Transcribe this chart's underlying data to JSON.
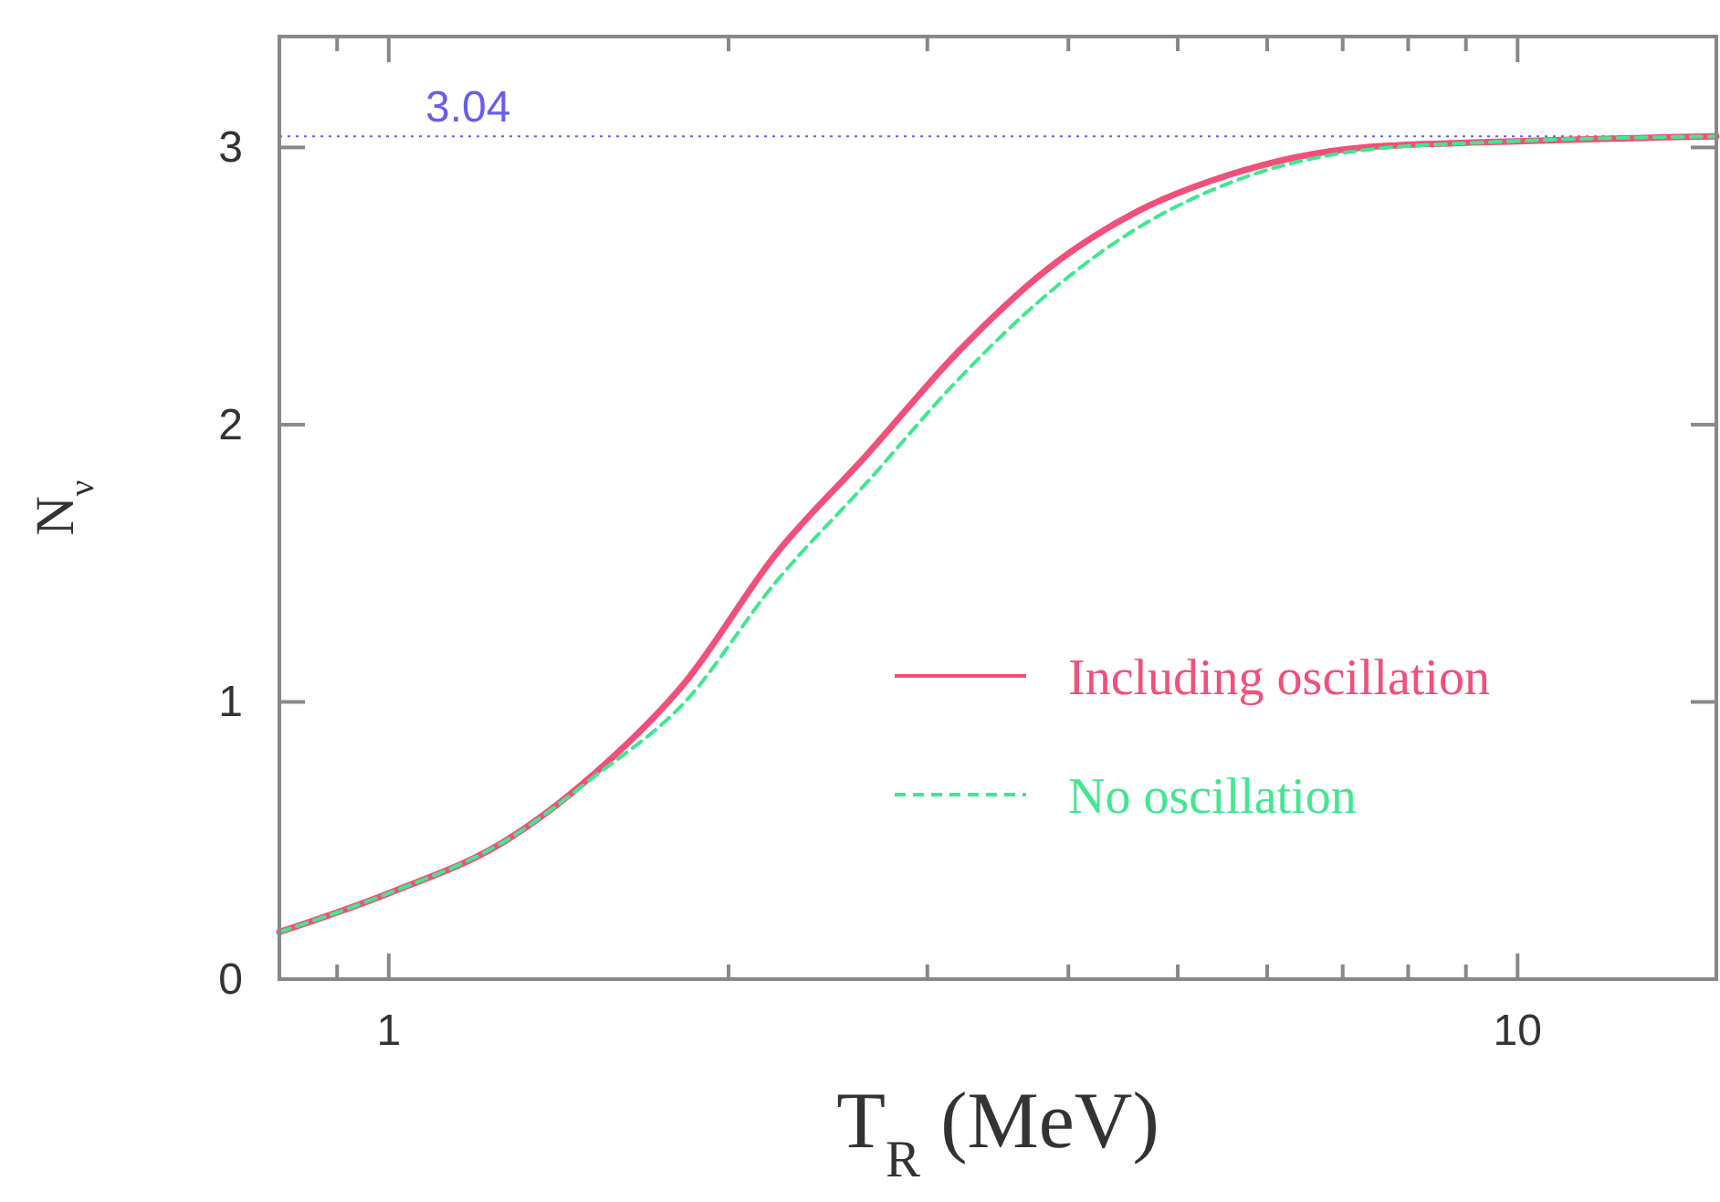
{
  "chart_data": {
    "type": "line",
    "xlabel": "T$_{R}$ (MeV)",
    "ylabel": "N$_{ν}$",
    "log": "x",
    "xlim": [
      0.8,
      15
    ],
    "ylim": [
      0,
      3.4
    ],
    "xticks": [
      {
        "value": 0.8,
        "label": null
      },
      {
        "value": 0.9,
        "label": null
      },
      1,
      {
        "value": 2,
        "label": null
      },
      {
        "value": 3,
        "label": null
      },
      {
        "value": 4,
        "label": null
      },
      {
        "value": 5,
        "label": null
      },
      {
        "value": 6,
        "label": null
      },
      {
        "value": 7,
        "label": null
      },
      {
        "value": 8,
        "label": null
      },
      {
        "value": 9,
        "label": null
      },
      10
    ],
    "yticks": [
      0,
      1,
      2,
      3
    ],
    "grid": false,
    "legend": "bottom right",
    "ref_lines": [
      {
        "axis": "y",
        "value": 3.04,
        "label": "3.04",
        "color": "#6a5cf0",
        "line_style": "dotted"
      }
    ],
    "series": [
      {
        "name": "Including oscillation",
        "color": "#f0507a",
        "line_style": "solid",
        "x": [
          0.8,
          1.0,
          1.27,
          1.52,
          1.83,
          2.2,
          2.65,
          3.19,
          3.83,
          4.61,
          5.54,
          7.3,
          9.6,
          15
        ],
        "values": [
          0.17,
          0.31,
          0.5,
          0.74,
          1.07,
          1.53,
          1.89,
          2.26,
          2.56,
          2.77,
          2.9,
          3.0,
          3.02,
          3.04
        ]
      },
      {
        "name": "No oscillation",
        "color": "#40e890",
        "line_style": "dashed",
        "x": [
          0.8,
          1.0,
          1.27,
          1.52,
          1.83,
          2.2,
          2.65,
          3.19,
          3.83,
          4.61,
          5.54,
          7.3,
          9.6,
          15
        ],
        "values": [
          0.17,
          0.31,
          0.5,
          0.73,
          1.0,
          1.43,
          1.79,
          2.16,
          2.47,
          2.71,
          2.87,
          2.99,
          3.02,
          3.04
        ]
      }
    ]
  }
}
